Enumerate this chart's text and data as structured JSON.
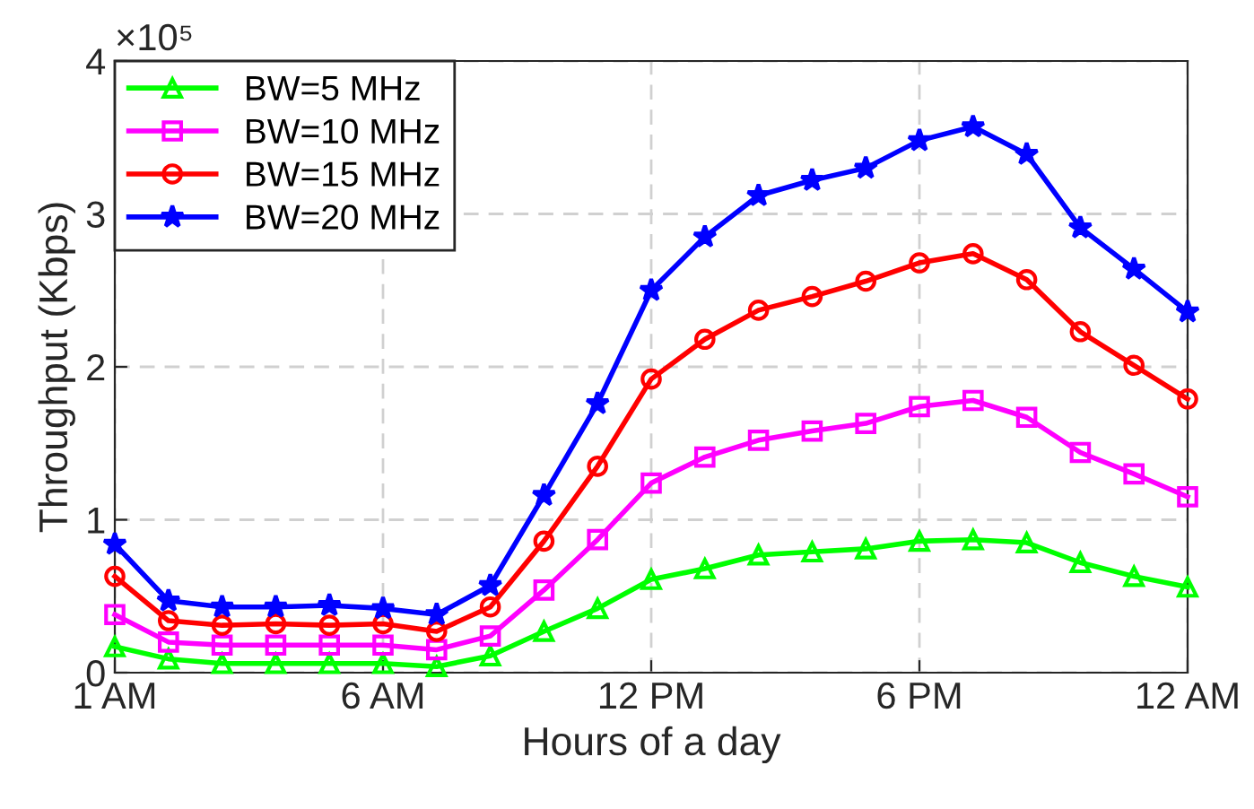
{
  "chart_data": {
    "type": "line",
    "xlabel": "Hours of a day",
    "ylabel": "Throughput (Kbps)",
    "annotations": [
      "×10⁵"
    ],
    "categories": [
      "1 AM",
      null,
      null,
      null,
      null,
      "6 AM",
      null,
      null,
      null,
      null,
      "12 PM",
      null,
      null,
      null,
      null,
      "6 PM",
      null,
      null,
      null,
      null,
      "12 AM"
    ],
    "ylim": [
      0,
      4
    ],
    "yticks": [
      0,
      1,
      2,
      3,
      4
    ],
    "grid": true,
    "legend": "top left",
    "line_style": "solid",
    "series": [
      {
        "name": "BW=5 MHz",
        "color": "#00ff00",
        "marker": "triangle",
        "values": [
          0.17,
          0.09,
          0.06,
          0.06,
          0.06,
          0.06,
          0.04,
          0.11,
          0.27,
          0.42,
          0.61,
          0.68,
          0.77,
          0.79,
          0.81,
          0.86,
          0.87,
          0.85,
          0.72,
          0.63,
          0.56
        ]
      },
      {
        "name": "BW=10 MHz",
        "color": "#ff00ff",
        "marker": "square",
        "values": [
          0.38,
          0.2,
          0.18,
          0.18,
          0.18,
          0.18,
          0.15,
          0.24,
          0.54,
          0.87,
          1.24,
          1.41,
          1.52,
          1.58,
          1.63,
          1.74,
          1.78,
          1.67,
          1.44,
          1.3,
          1.15
        ]
      },
      {
        "name": "BW=15 MHz",
        "color": "#ff0000",
        "marker": "circle",
        "values": [
          0.63,
          0.34,
          0.31,
          0.32,
          0.31,
          0.32,
          0.27,
          0.43,
          0.86,
          1.35,
          1.92,
          2.18,
          2.37,
          2.46,
          2.56,
          2.68,
          2.74,
          2.57,
          2.23,
          2.01,
          1.79
        ]
      },
      {
        "name": "BW=20 MHz",
        "color": "#0000ff",
        "marker": "star",
        "values": [
          0.84,
          0.47,
          0.43,
          0.43,
          0.44,
          0.42,
          0.38,
          0.57,
          1.16,
          1.76,
          2.5,
          2.85,
          3.12,
          3.22,
          3.3,
          3.48,
          3.57,
          3.39,
          2.91,
          2.64,
          2.36
        ]
      }
    ]
  }
}
